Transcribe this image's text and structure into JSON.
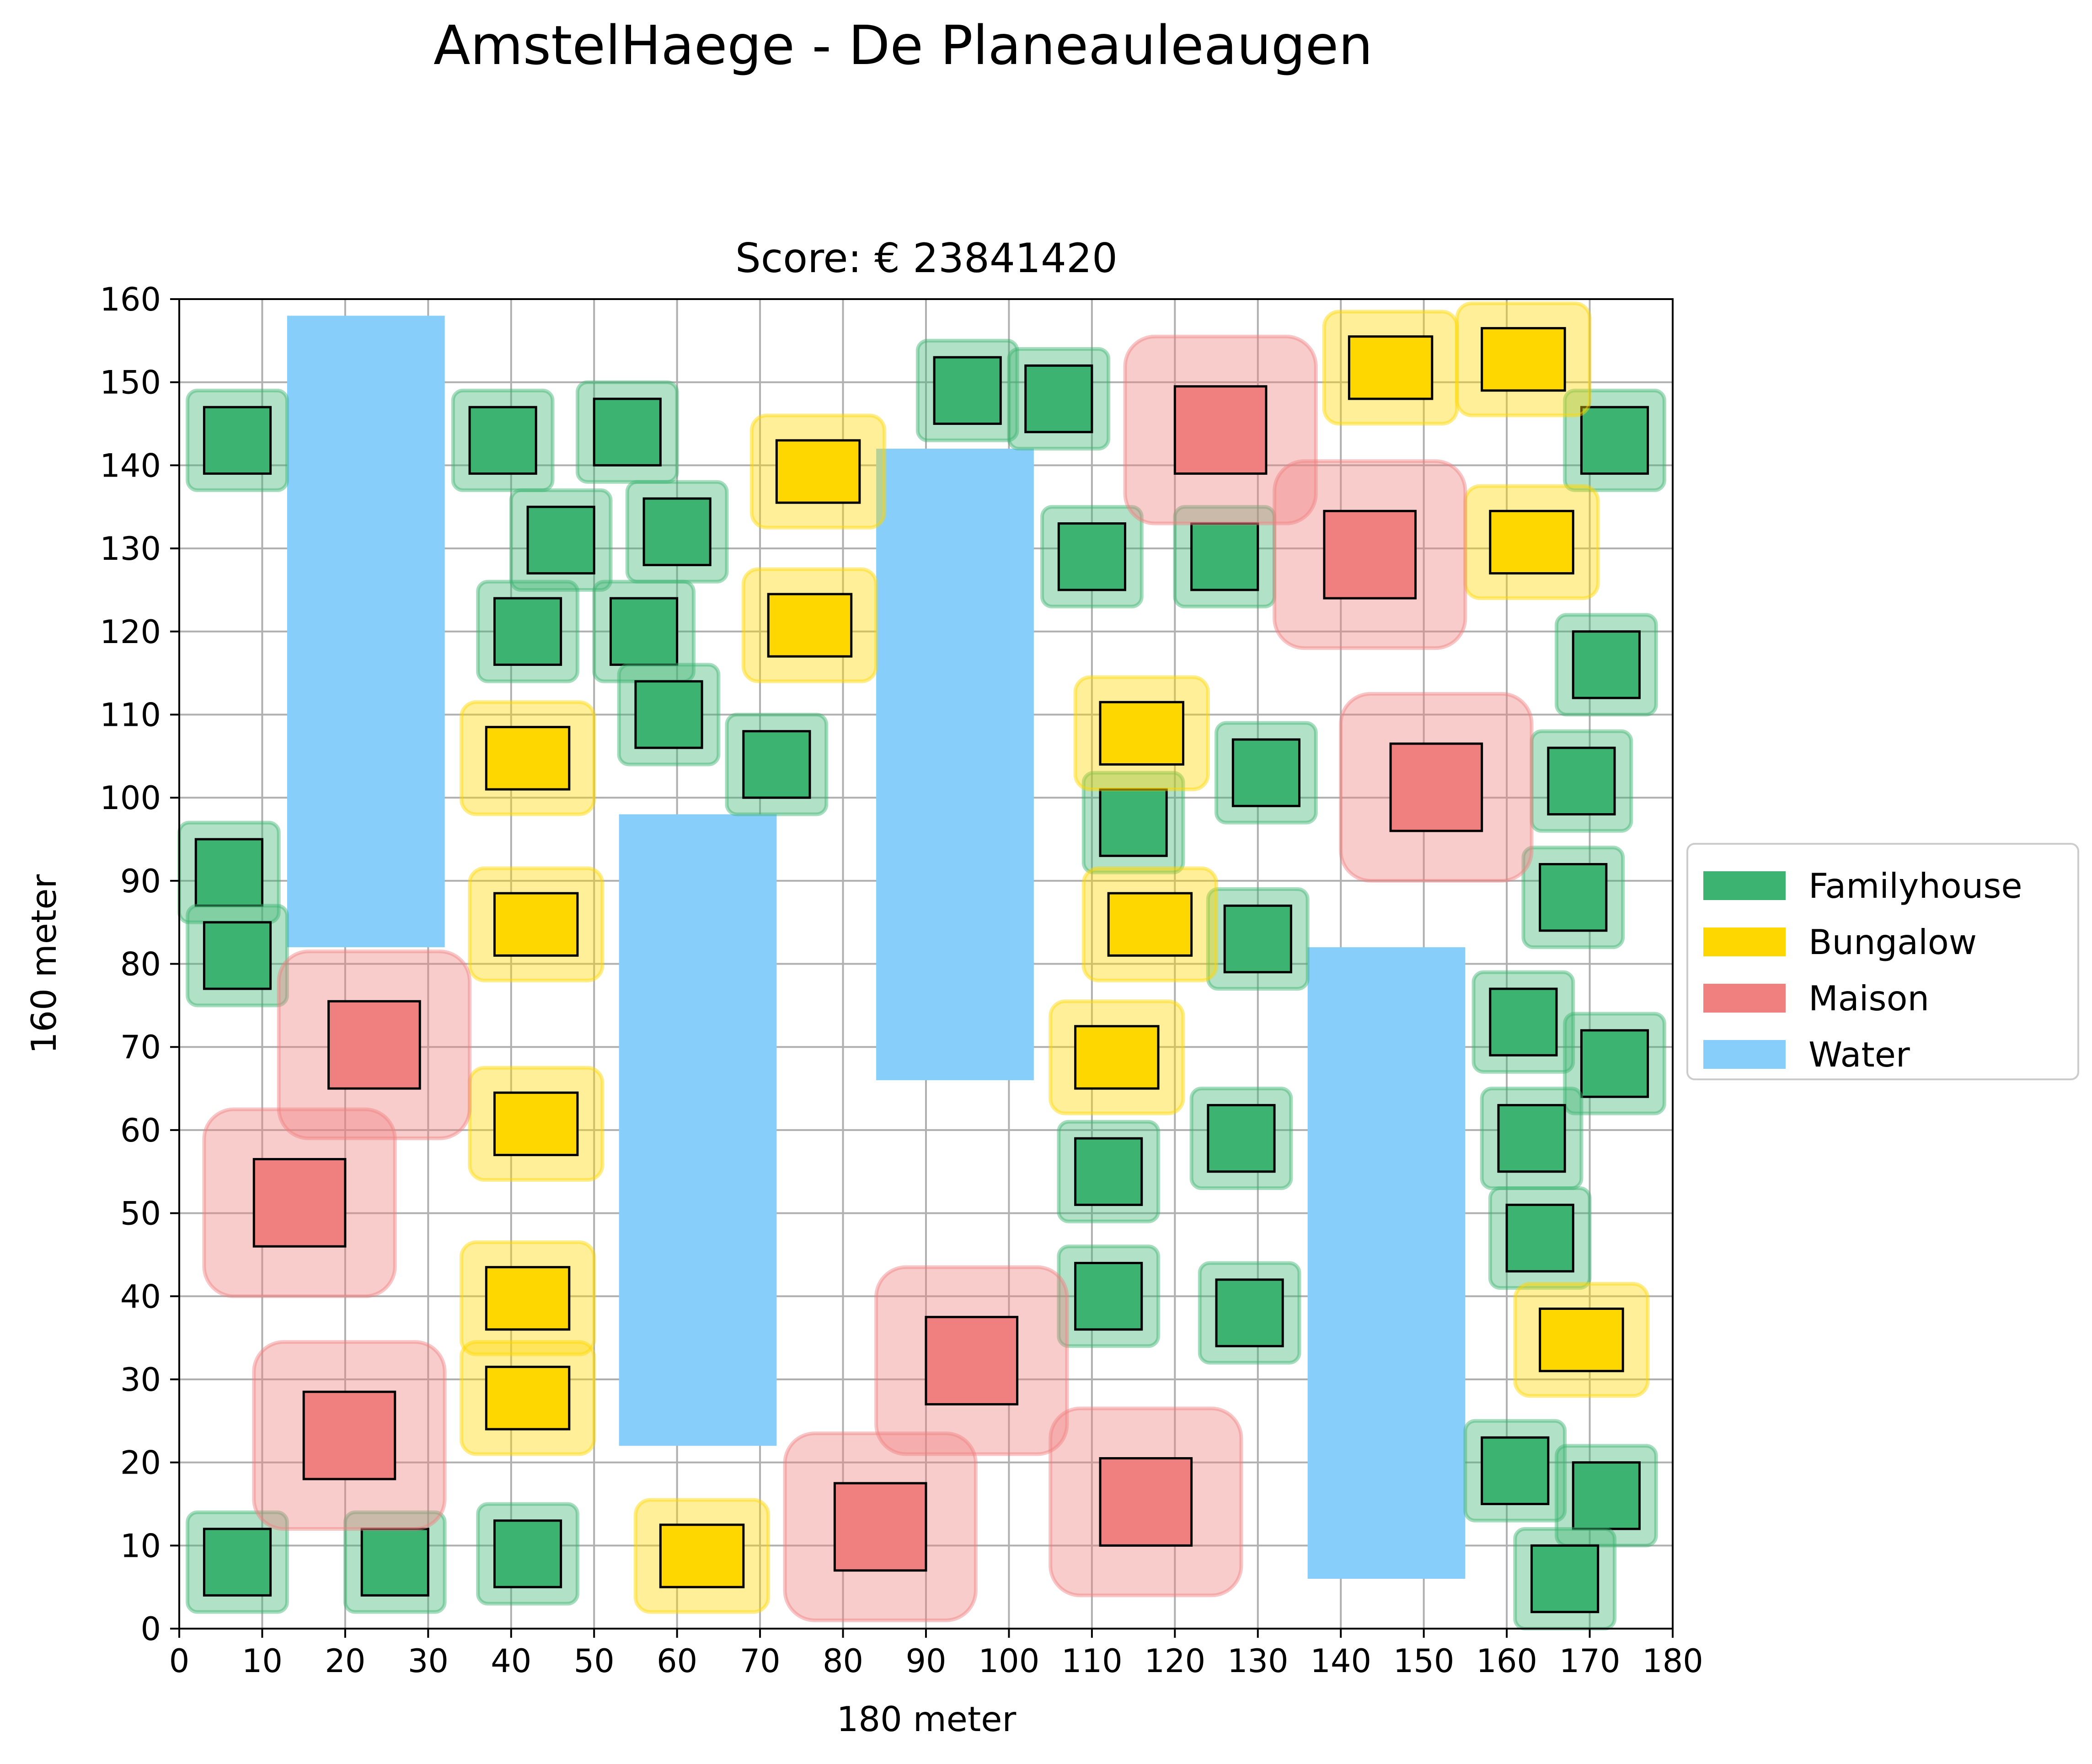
{
  "suptitle": "AmstelHaege - De Planeauleaugen",
  "chart_data": {
    "type": "scatter",
    "title": "Score: € 23841420",
    "xlabel": "180 meter",
    "ylabel": "160 meter",
    "xlim": [
      0,
      180
    ],
    "ylim": [
      0,
      160
    ],
    "xticks": [
      0,
      10,
      20,
      30,
      40,
      50,
      60,
      70,
      80,
      90,
      100,
      110,
      120,
      130,
      140,
      150,
      160,
      170,
      180
    ],
    "yticks": [
      0,
      10,
      20,
      30,
      40,
      50,
      60,
      70,
      80,
      90,
      100,
      110,
      120,
      130,
      140,
      150,
      160
    ],
    "grid": true,
    "legend_position": "center right, outside plot",
    "legend": [
      {
        "label": "Familyhouse",
        "color": "#3cb371"
      },
      {
        "label": "Bungalow",
        "color": "#ffd700"
      },
      {
        "label": "Maison",
        "color": "#f08080"
      },
      {
        "label": "Water",
        "color": "#87cefa"
      }
    ],
    "colors": {
      "Familyhouse": "#3cb371",
      "Bungalow": "#ffd700",
      "Maison": "#f08080",
      "Water": "#87cefa"
    },
    "units_m": {
      "Familyhouse": {
        "w": 8,
        "h": 8,
        "clearance": 2
      },
      "Bungalow": {
        "w": 10,
        "h": 7.5,
        "clearance": 3
      },
      "Maison": {
        "w": 11,
        "h": 10.5,
        "clearance": 6
      }
    },
    "water": [
      {
        "x": 13,
        "y": 82,
        "w": 19,
        "h": 76
      },
      {
        "x": 53,
        "y": 22,
        "w": 19,
        "h": 76
      },
      {
        "x": 84,
        "y": 66,
        "w": 19,
        "h": 76
      },
      {
        "x": 136,
        "y": 6,
        "w": 19,
        "h": 76
      }
    ],
    "houses": [
      {
        "type": "Familyhouse",
        "x": 3,
        "y": 139
      },
      {
        "type": "Familyhouse",
        "x": 2,
        "y": 87
      },
      {
        "type": "Familyhouse",
        "x": 3,
        "y": 77
      },
      {
        "type": "Familyhouse",
        "x": 3,
        "y": 4
      },
      {
        "type": "Familyhouse",
        "x": 22,
        "y": 4
      },
      {
        "type": "Familyhouse",
        "x": 35,
        "y": 139
      },
      {
        "type": "Familyhouse",
        "x": 42,
        "y": 127
      },
      {
        "type": "Familyhouse",
        "x": 38,
        "y": 116
      },
      {
        "type": "Familyhouse",
        "x": 38,
        "y": 5
      },
      {
        "type": "Familyhouse",
        "x": 50,
        "y": 140
      },
      {
        "type": "Familyhouse",
        "x": 56,
        "y": 128
      },
      {
        "type": "Familyhouse",
        "x": 52,
        "y": 116
      },
      {
        "type": "Familyhouse",
        "x": 55,
        "y": 106
      },
      {
        "type": "Familyhouse",
        "x": 68,
        "y": 100
      },
      {
        "type": "Familyhouse",
        "x": 91,
        "y": 145
      },
      {
        "type": "Familyhouse",
        "x": 102,
        "y": 144
      },
      {
        "type": "Familyhouse",
        "x": 106,
        "y": 125
      },
      {
        "type": "Familyhouse",
        "x": 122,
        "y": 125
      },
      {
        "type": "Familyhouse",
        "x": 111,
        "y": 93
      },
      {
        "type": "Familyhouse",
        "x": 126,
        "y": 79
      },
      {
        "type": "Familyhouse",
        "x": 127,
        "y": 99
      },
      {
        "type": "Familyhouse",
        "x": 124,
        "y": 55
      },
      {
        "type": "Familyhouse",
        "x": 108,
        "y": 51
      },
      {
        "type": "Familyhouse",
        "x": 108,
        "y": 36
      },
      {
        "type": "Familyhouse",
        "x": 125,
        "y": 34
      },
      {
        "type": "Familyhouse",
        "x": 169,
        "y": 139
      },
      {
        "type": "Familyhouse",
        "x": 168,
        "y": 112
      },
      {
        "type": "Familyhouse",
        "x": 165,
        "y": 98
      },
      {
        "type": "Familyhouse",
        "x": 164,
        "y": 84
      },
      {
        "type": "Familyhouse",
        "x": 158,
        "y": 69
      },
      {
        "type": "Familyhouse",
        "x": 169,
        "y": 64
      },
      {
        "type": "Familyhouse",
        "x": 159,
        "y": 55
      },
      {
        "type": "Familyhouse",
        "x": 160,
        "y": 43
      },
      {
        "type": "Familyhouse",
        "x": 157,
        "y": 15
      },
      {
        "type": "Familyhouse",
        "x": 168,
        "y": 12
      },
      {
        "type": "Familyhouse",
        "x": 163,
        "y": 2
      },
      {
        "type": "Bungalow",
        "x": 72,
        "y": 135.5
      },
      {
        "type": "Bungalow",
        "x": 71,
        "y": 117
      },
      {
        "type": "Bungalow",
        "x": 37,
        "y": 101
      },
      {
        "type": "Bungalow",
        "x": 38,
        "y": 81
      },
      {
        "type": "Bungalow",
        "x": 38,
        "y": 57
      },
      {
        "type": "Bungalow",
        "x": 37,
        "y": 36
      },
      {
        "type": "Bungalow",
        "x": 37,
        "y": 24
      },
      {
        "type": "Bungalow",
        "x": 58,
        "y": 5
      },
      {
        "type": "Bungalow",
        "x": 141,
        "y": 148
      },
      {
        "type": "Bungalow",
        "x": 157,
        "y": 149
      },
      {
        "type": "Bungalow",
        "x": 158,
        "y": 127
      },
      {
        "type": "Bungalow",
        "x": 111,
        "y": 104
      },
      {
        "type": "Bungalow",
        "x": 112,
        "y": 81
      },
      {
        "type": "Bungalow",
        "x": 108,
        "y": 65
      },
      {
        "type": "Bungalow",
        "x": 164,
        "y": 31
      },
      {
        "type": "Maison",
        "x": 120,
        "y": 139
      },
      {
        "type": "Maison",
        "x": 138,
        "y": 124
      },
      {
        "type": "Maison",
        "x": 146,
        "y": 96
      },
      {
        "type": "Maison",
        "x": 18,
        "y": 65
      },
      {
        "type": "Maison",
        "x": 9,
        "y": 46
      },
      {
        "type": "Maison",
        "x": 15,
        "y": 18
      },
      {
        "type": "Maison",
        "x": 90,
        "y": 27
      },
      {
        "type": "Maison",
        "x": 79,
        "y": 7
      },
      {
        "type": "Maison",
        "x": 111,
        "y": 10
      }
    ]
  }
}
